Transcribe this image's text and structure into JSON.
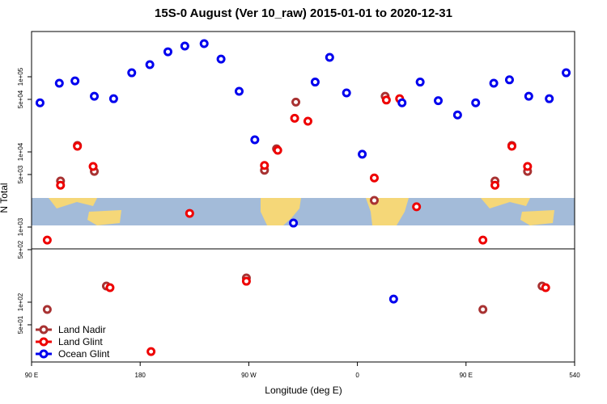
{
  "chart_data": {
    "type": "scatter",
    "title": "15S-0 August (Ver 10_raw)   2015-01-01 to 2020-12-31",
    "x_label": "Longitude (deg E)",
    "y_label": "N Total",
    "xlim": [
      90,
      540
    ],
    "ylim": [
      16,
      400000
    ],
    "log_y": true,
    "legend": "bottom-left",
    "xticks": [
      {
        "value": 90,
        "label": "90 E"
      },
      180,
      {
        "value": 270,
        "label": "90 W"
      },
      {
        "value": 360,
        "label": "0"
      },
      {
        "value": 450,
        "label": "90 E"
      },
      540
    ],
    "yticks": [
      {
        "value": 50,
        "label": "5e+01"
      },
      {
        "value": 100,
        "label": "1e+02"
      },
      {
        "value": 500,
        "label": "5e+02"
      },
      {
        "value": 1000,
        "label": "1e+03"
      },
      {
        "value": 5000,
        "label": "5e+03"
      },
      {
        "value": 10000,
        "label": "1e+04"
      },
      {
        "value": 50000,
        "label": "5e+04"
      },
      {
        "value": 100000,
        "label": "1e+05"
      }
    ],
    "series": [
      {
        "name": "Land Nadir",
        "color": "#a83232",
        "x": [
          103,
          114,
          128,
          142,
          152,
          268,
          283,
          293,
          309,
          374,
          383,
          464,
          474,
          488,
          501,
          513
        ],
        "values": [
          80,
          4100,
          12200,
          5500,
          164,
          210,
          5700,
          11000,
          46000,
          2260,
          55000,
          80,
          4100,
          12200,
          5500,
          164
        ]
      },
      {
        "name": "Land Glint",
        "color": "#ee0000",
        "x": [
          103,
          114,
          128,
          141,
          155,
          189,
          221,
          268,
          283,
          294,
          308,
          319,
          374,
          384,
          395,
          409,
          464,
          474,
          488,
          501,
          516
        ],
        "values": [
          670,
          3600,
          11900,
          6400,
          156,
          22,
          1520,
          190,
          6600,
          10500,
          28000,
          25600,
          4500,
          49000,
          51000,
          1860,
          670,
          3600,
          11900,
          6400,
          156
        ]
      },
      {
        "name": "Ocean Glint",
        "color": "#0000ee",
        "x": [
          97,
          113,
          126,
          142,
          158,
          173,
          188,
          203,
          217,
          233,
          247,
          262,
          275,
          307,
          325,
          337,
          351,
          364,
          390,
          397,
          412,
          427,
          443,
          458,
          473,
          486,
          502,
          519,
          533
        ],
        "values": [
          45000,
          82000,
          88000,
          55000,
          51000,
          113000,
          145000,
          215000,
          256000,
          276000,
          172000,
          64000,
          14500,
          1130,
          85000,
          181000,
          61000,
          9300,
          110,
          45000,
          85000,
          48000,
          31000,
          45000,
          82000,
          91000,
          55000,
          51000,
          113000
        ]
      }
    ]
  }
}
